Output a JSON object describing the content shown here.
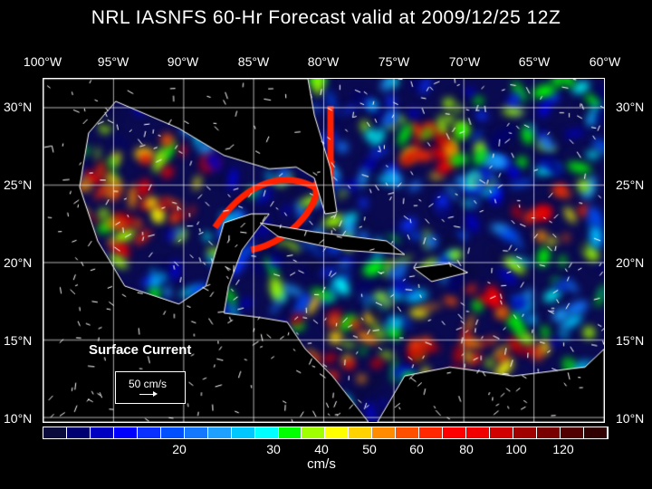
{
  "title": "NRL IASNFS  60-Hr Forecast valid at 2009/12/25 12Z",
  "lon_labels": [
    "100°W",
    "95°W",
    "90°W",
    "85°W",
    "80°W",
    "75°W",
    "70°W",
    "65°W",
    "60°W"
  ],
  "lat_labels": [
    "30°N",
    "25°N",
    "20°N",
    "15°N",
    "10°N"
  ],
  "legend": {
    "title": "Surface Current",
    "scale_label": "50 cm/s"
  },
  "colorbar": {
    "colors": [
      "#0a0a3c",
      "#000070",
      "#0000c0",
      "#0000ff",
      "#0a30ff",
      "#0050ff",
      "#1478ff",
      "#1ea0ff",
      "#00c8ff",
      "#00ffff",
      "#00ff00",
      "#a0ff00",
      "#ffff00",
      "#ffd200",
      "#ff8c00",
      "#ff5000",
      "#ff2800",
      "#ff0000",
      "#f00000",
      "#d00000",
      "#a00000",
      "#780000",
      "#500000",
      "#300000"
    ],
    "ticks": [
      "20",
      "30",
      "40",
      "50",
      "60",
      "80",
      "100",
      "120"
    ],
    "unit": "cm/s"
  }
}
